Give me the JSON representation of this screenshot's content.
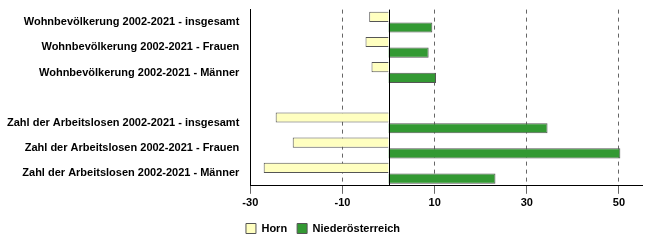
{
  "chart_data": {
    "type": "bar",
    "orientation": "horizontal",
    "categories": [
      "Wohnbevölkerung 2002-2021 - insgesamt",
      "Wohnbevölkerung 2002-2021 - Frauen",
      "Wohnbevölkerung 2002-2021 - Männer",
      null,
      "Zahl der Arbeitslosen 2002-2021 - insgesamt",
      "Zahl der Arbeitslosen 2002-2021 - Frauen",
      "Zahl der Arbeitslosen 2002-2021 - Männer"
    ],
    "series": [
      {
        "name": "Horn",
        "color": "#ffffc0",
        "values": [
          -4.2,
          -5.0,
          -3.7,
          null,
          -24.5,
          -20.8,
          -27.1
        ]
      },
      {
        "name": "Niederösterreich",
        "color": "#339933",
        "values": [
          9.5,
          8.7,
          10.3,
          null,
          34.5,
          50.3,
          23.2
        ]
      }
    ],
    "xlim": [
      -30,
      55
    ],
    "xticks": [
      -30,
      -10,
      10,
      30,
      50
    ],
    "grid": true,
    "legend": "bottom"
  }
}
